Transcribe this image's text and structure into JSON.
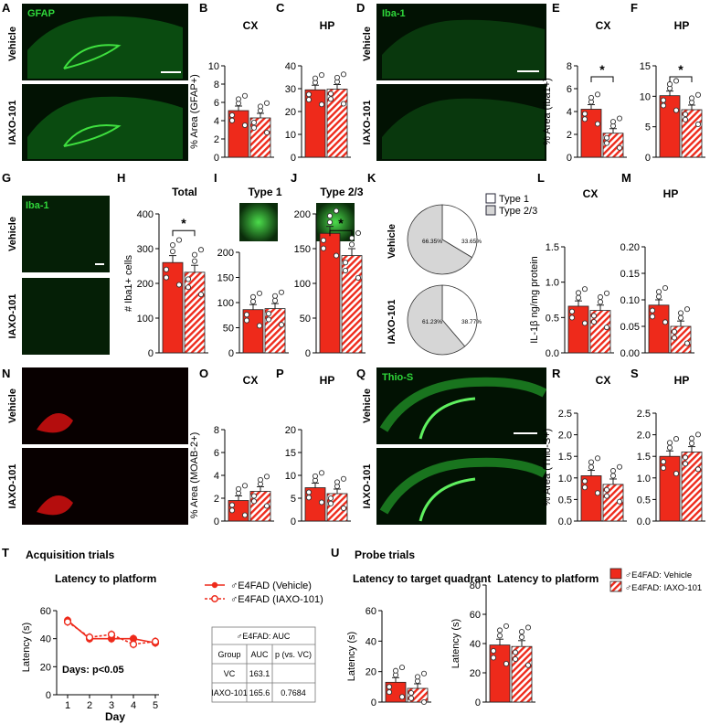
{
  "panel_letters": [
    "A",
    "B",
    "C",
    "D",
    "E",
    "F",
    "G",
    "H",
    "I",
    "J",
    "K",
    "L",
    "M",
    "N",
    "O",
    "P",
    "Q",
    "R",
    "S",
    "T",
    "U"
  ],
  "micro_labels": {
    "A": "GFAP",
    "D": "Iba-1",
    "G": "Iba-1",
    "Q": "Thio-S"
  },
  "group_labels": {
    "vehicle": "Vehicle",
    "iaxo": "IAXO-101"
  },
  "colors": {
    "red": "#ee2a1b",
    "green": "#2fd63a",
    "magenta": "#e01010",
    "pie_grey": "#d6d6d6"
  },
  "icons": [
    "scale-bar-icon",
    "hatched-bar-icon",
    "legend-swatch-icon"
  ],
  "charts": {
    "B": {
      "title": "CX",
      "ylabel": "% Area (GFAP+)",
      "ylim": [
        0,
        10
      ],
      "ticks": [
        "0",
        "2",
        "4",
        "6",
        "8",
        "10"
      ]
    },
    "C": {
      "title": "HP",
      "ylabel": "",
      "ylim": [
        0,
        40
      ],
      "ticks": [
        "0",
        "10",
        "20",
        "30",
        "40"
      ]
    },
    "E": {
      "title": "CX",
      "ylabel": "% Area (Iba1+)",
      "ylim": [
        0,
        8
      ],
      "ticks": [
        "0",
        "2",
        "4",
        "6",
        "8"
      ],
      "sig": "*"
    },
    "F": {
      "title": "HP",
      "ylabel": "",
      "ylim": [
        0,
        15
      ],
      "ticks": [
        "0",
        "5",
        "10",
        "15"
      ],
      "sig": "*"
    },
    "H": {
      "title": "Total",
      "ylabel": "# Iba1+ cells",
      "ylim": [
        0,
        400
      ],
      "ticks": [
        "0",
        "100",
        "200",
        "300",
        "400"
      ],
      "sig": "*"
    },
    "I": {
      "title": "Type 1",
      "ylabel": "",
      "ylim": [
        0,
        200
      ],
      "ticks": [
        "0",
        "50",
        "100",
        "150",
        "200"
      ]
    },
    "J": {
      "title": "Type 2/3",
      "ylabel": "",
      "ylim": [
        0,
        200
      ],
      "ticks": [
        "0",
        "50",
        "100",
        "150",
        "200"
      ],
      "sig": "*"
    },
    "L": {
      "title": "CX",
      "ylabel": "IL-1β ng/mg protein",
      "ylim": [
        0,
        1.5
      ],
      "ticks": [
        "0.0",
        "0.5",
        "1.0",
        "1.5"
      ]
    },
    "M": {
      "title": "HP",
      "ylabel": "",
      "ylim": [
        0,
        0.2
      ],
      "ticks": [
        "0.00",
        "0.05",
        "0.10",
        "0.15",
        "0.20"
      ]
    },
    "O": {
      "title": "CX",
      "ylabel": "% Area (MOAB-2+)",
      "ylim": [
        0,
        8
      ],
      "ticks": [
        "0",
        "2",
        "4",
        "6",
        "8"
      ]
    },
    "P": {
      "title": "HP",
      "ylabel": "",
      "ylim": [
        0,
        20
      ],
      "ticks": [
        "0",
        "5",
        "10",
        "15",
        "20"
      ]
    },
    "R": {
      "title": "CX",
      "ylabel": "% Area (Thio-S+)",
      "ylim": [
        0,
        2.5
      ],
      "ticks": [
        "0.0",
        "0.5",
        "1.0",
        "1.5",
        "2.0",
        "2.5"
      ]
    },
    "S": {
      "title": "HP",
      "ylabel": "",
      "ylim": [
        0,
        2.5
      ],
      "ticks": [
        "0.0",
        "0.5",
        "1.0",
        "1.5",
        "2.0",
        "2.5"
      ]
    }
  },
  "pie": {
    "legend": [
      "Type 1",
      "Type 2/3"
    ],
    "vehicle": {
      "label": "Vehicle",
      "type23": "66.35%",
      "type1": "33.65%"
    },
    "iaxo": {
      "label": "IAXO-101",
      "type23": "61.23%",
      "type1": "38.77%"
    }
  },
  "T": {
    "header": "Acquisition trials",
    "title": "Latency to platform",
    "ylabel": "Latency (s)",
    "xlabel": "Day",
    "xticks": [
      "1",
      "2",
      "3",
      "4",
      "5"
    ],
    "yticks": [
      "0",
      "20",
      "40",
      "60"
    ],
    "stat": "Days: p<0.05",
    "legend": [
      "♂E4FAD (Vehicle)",
      "♂E4FAD (IAXO-101)"
    ],
    "table": {
      "caption": "♂E4FAD: AUC",
      "headers": [
        "Group",
        "AUC",
        "p (vs. VC)"
      ],
      "rows": [
        [
          "VC",
          "163.1",
          ""
        ],
        [
          "IAXO-101",
          "165.6",
          "0.7684"
        ]
      ]
    }
  },
  "U": {
    "header": "Probe trials",
    "title1": "Latency to target quadrant",
    "title2": "Latency to platform",
    "ylabel": "Latency (s)",
    "yticks1": [
      "0",
      "20",
      "40",
      "60"
    ],
    "yticks2": [
      "0",
      "20",
      "40",
      "60",
      "80"
    ],
    "legend": [
      "♂E4FAD: Vehicle",
      "♂E4FAD: IAXO-101"
    ]
  },
  "chart_data": [
    {
      "type": "bar",
      "panel": "B",
      "categories": [
        "Vehicle",
        "IAXO-101"
      ],
      "values": [
        5.1,
        4.3
      ],
      "ylim": [
        0,
        10
      ]
    },
    {
      "type": "bar",
      "panel": "C",
      "categories": [
        "Vehicle",
        "IAXO-101"
      ],
      "values": [
        29.5,
        29.8
      ],
      "ylim": [
        0,
        40
      ]
    },
    {
      "type": "bar",
      "panel": "E",
      "categories": [
        "Vehicle",
        "IAXO-101"
      ],
      "values": [
        4.2,
        2.1
      ],
      "ylim": [
        0,
        8
      ]
    },
    {
      "type": "bar",
      "panel": "F",
      "categories": [
        "Vehicle",
        "IAXO-101"
      ],
      "values": [
        10.1,
        7.8
      ],
      "ylim": [
        0,
        15
      ]
    },
    {
      "type": "bar",
      "panel": "H",
      "categories": [
        "Vehicle",
        "IAXO-101"
      ],
      "values": [
        260,
        232
      ],
      "ylim": [
        0,
        400
      ]
    },
    {
      "type": "bar",
      "panel": "I",
      "categories": [
        "Vehicle",
        "IAXO-101"
      ],
      "values": [
        86,
        88
      ],
      "ylim": [
        0,
        200
      ]
    },
    {
      "type": "bar",
      "panel": "J",
      "categories": [
        "Vehicle",
        "IAXO-101"
      ],
      "values": [
        172,
        140
      ],
      "ylim": [
        0,
        200
      ]
    },
    {
      "type": "pie",
      "panel": "K",
      "series": [
        {
          "name": "Vehicle",
          "values": [
            33.65,
            66.35
          ]
        },
        {
          "name": "IAXO-101",
          "values": [
            38.77,
            61.23
          ]
        }
      ],
      "categories": [
        "Type 1",
        "Type 2/3"
      ]
    },
    {
      "type": "bar",
      "panel": "L",
      "categories": [
        "Vehicle",
        "IAXO-101"
      ],
      "values": [
        0.66,
        0.6
      ],
      "ylim": [
        0,
        1.5
      ]
    },
    {
      "type": "bar",
      "panel": "M",
      "categories": [
        "Vehicle",
        "IAXO-101"
      ],
      "values": [
        0.09,
        0.05
      ],
      "ylim": [
        0,
        0.2
      ]
    },
    {
      "type": "bar",
      "panel": "O",
      "categories": [
        "Vehicle",
        "IAXO-101"
      ],
      "values": [
        1.8,
        2.6
      ],
      "ylim": [
        0,
        8
      ]
    },
    {
      "type": "bar",
      "panel": "P",
      "categories": [
        "Vehicle",
        "IAXO-101"
      ],
      "values": [
        7.3,
        6.0
      ],
      "ylim": [
        0,
        20
      ]
    },
    {
      "type": "bar",
      "panel": "R",
      "categories": [
        "Vehicle",
        "IAXO-101"
      ],
      "values": [
        1.05,
        0.85
      ],
      "ylim": [
        0,
        2.5
      ]
    },
    {
      "type": "bar",
      "panel": "S",
      "categories": [
        "Vehicle",
        "IAXO-101"
      ],
      "values": [
        1.5,
        1.6
      ],
      "ylim": [
        0,
        2.5
      ]
    },
    {
      "type": "line",
      "panel": "T",
      "x": [
        1,
        2,
        3,
        4,
        5
      ],
      "series": [
        {
          "name": "♂E4FAD (Vehicle)",
          "values": [
            53,
            40,
            40,
            40,
            37
          ]
        },
        {
          "name": "♂E4FAD (IAXO-101)",
          "values": [
            52,
            41,
            43,
            36,
            38
          ]
        }
      ],
      "ylim": [
        0,
        60
      ]
    },
    {
      "type": "bar",
      "panel": "U1",
      "categories": [
        "Vehicle",
        "IAXO-101"
      ],
      "values": [
        13,
        9
      ],
      "ylim": [
        0,
        60
      ]
    },
    {
      "type": "bar",
      "panel": "U2",
      "categories": [
        "Vehicle",
        "IAXO-101"
      ],
      "values": [
        39,
        38
      ],
      "ylim": [
        0,
        80
      ]
    }
  ]
}
